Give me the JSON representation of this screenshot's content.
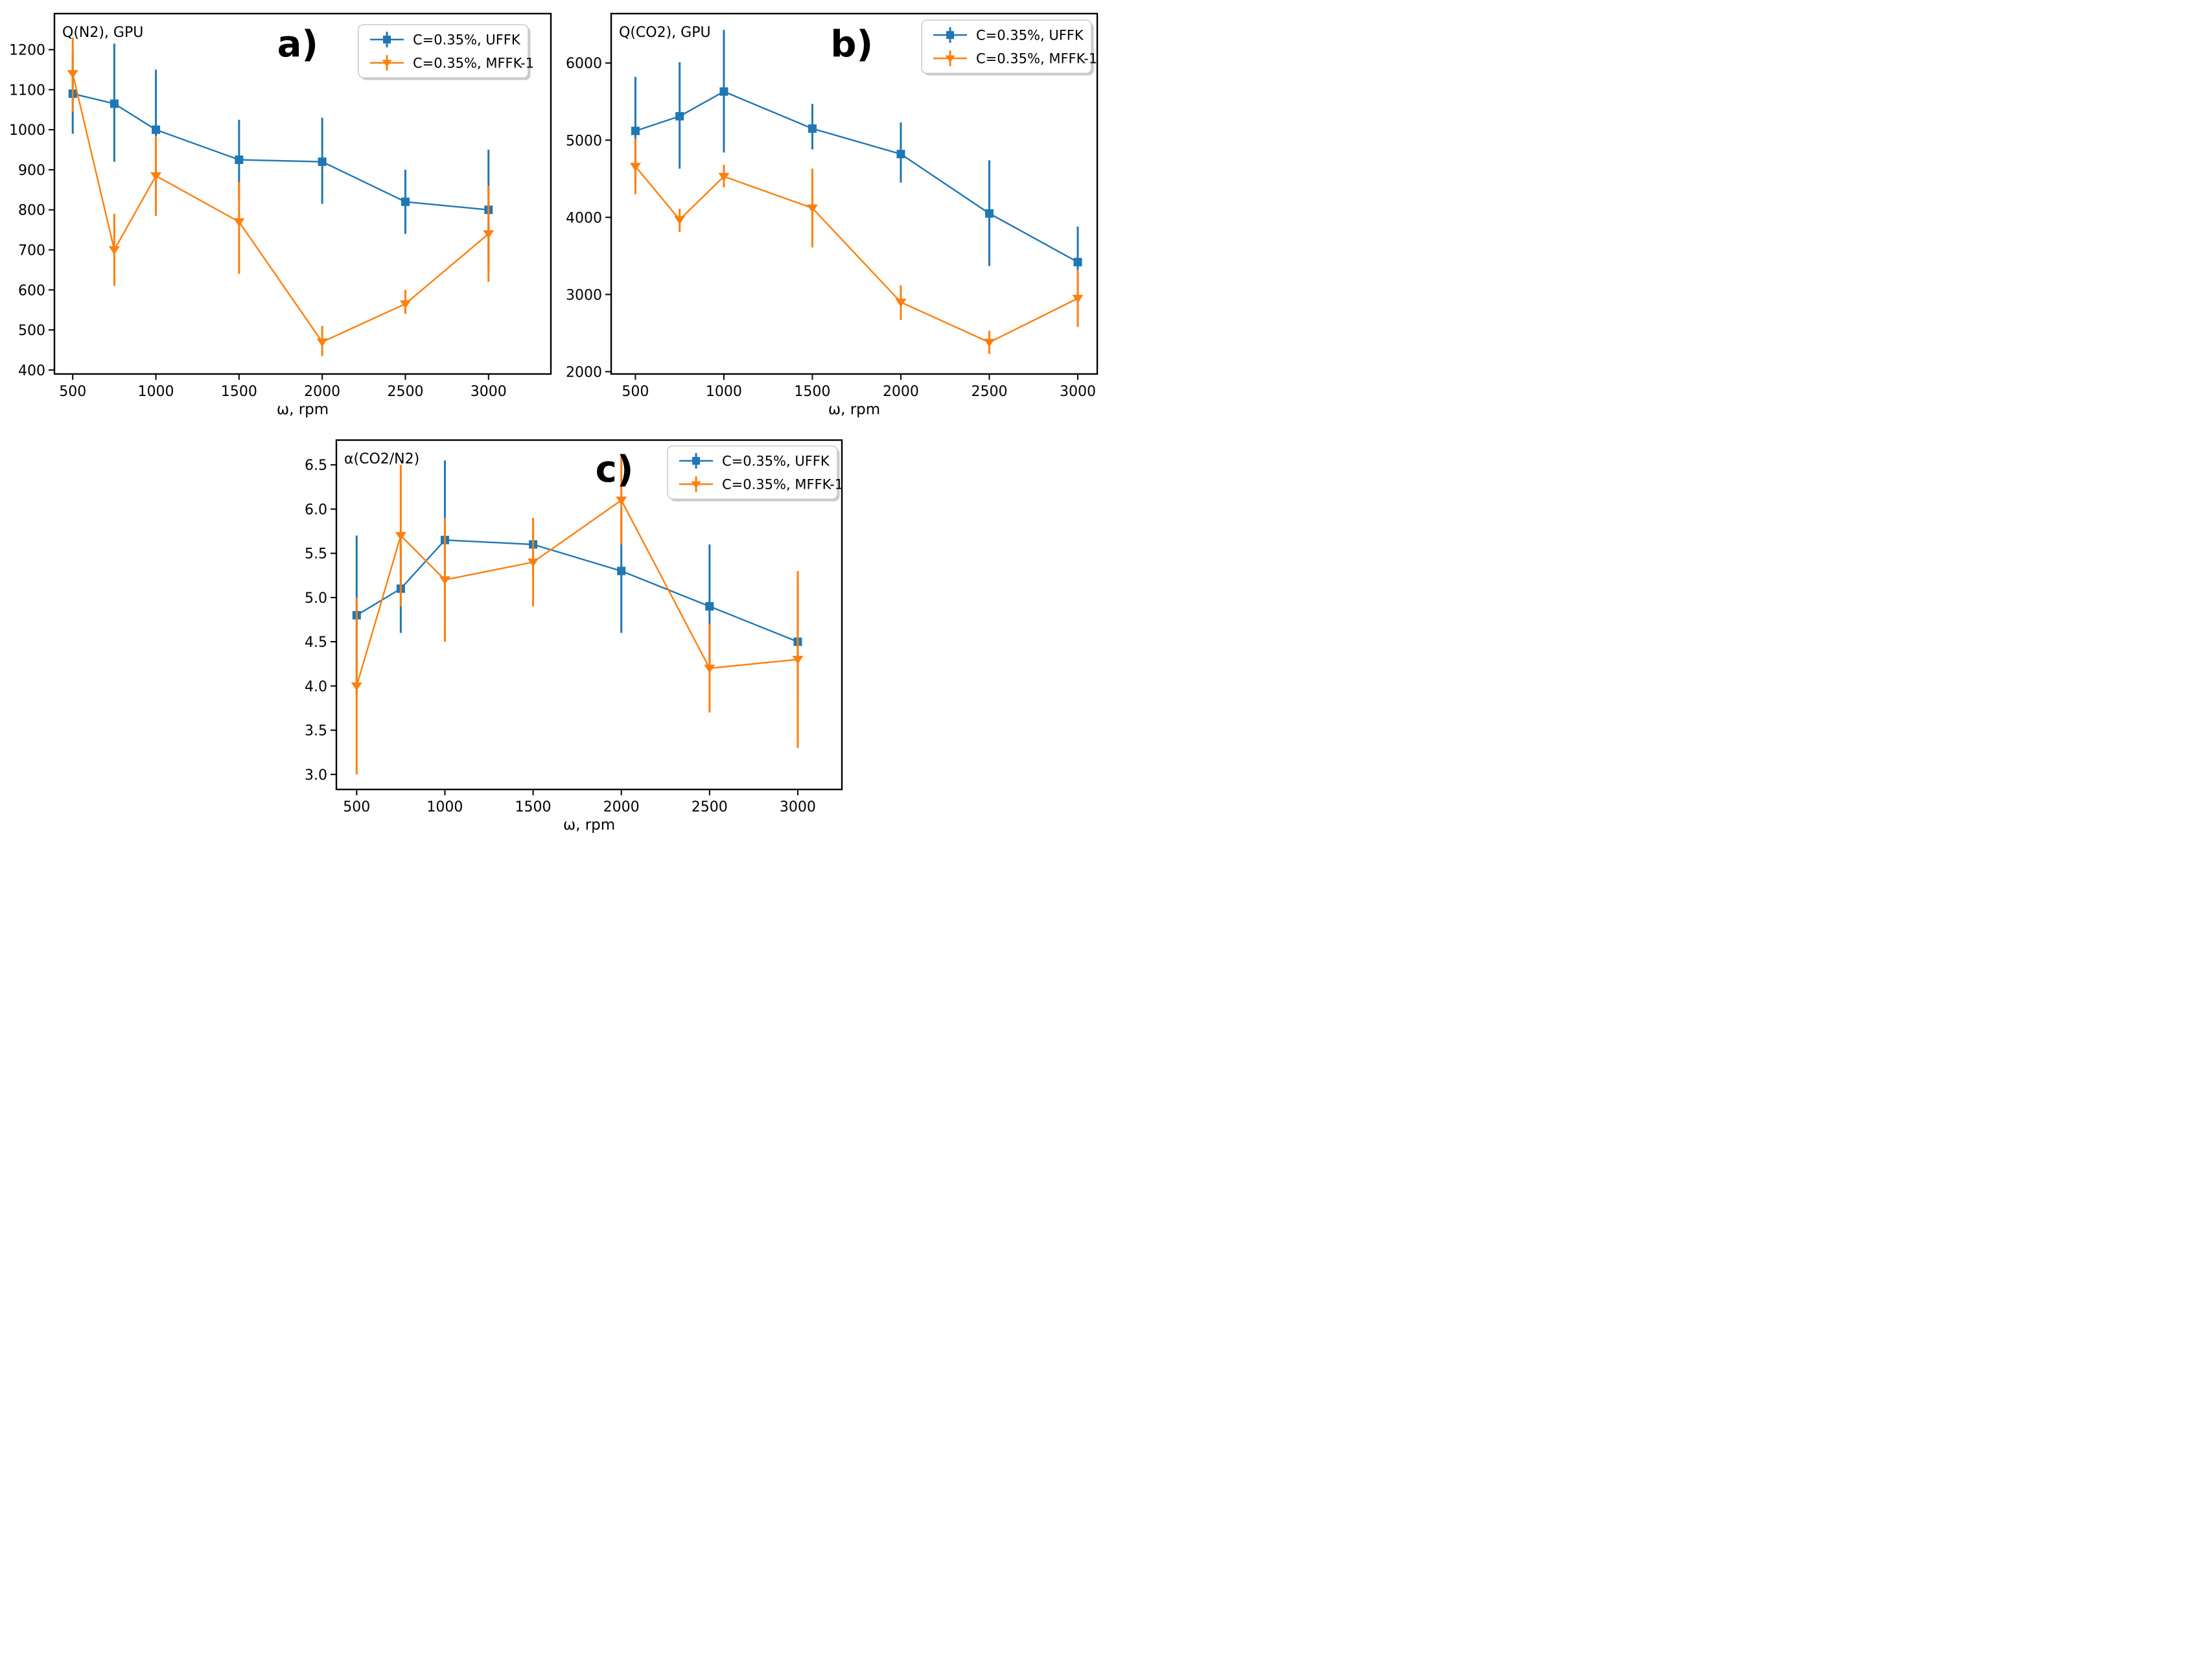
{
  "figure": {
    "background": "#ffffff",
    "axis_color": "#000000",
    "legend_border_color": "#cccccc",
    "legend_shadow_color": "#a0a0a0",
    "text_color": "#000000"
  },
  "chart_data": [
    {
      "id": "a",
      "panel_label": "a)",
      "type": "line",
      "title": "Q(N2), GPU",
      "xlabel": "ω, rpm",
      "x": [
        500,
        750,
        1000,
        1500,
        2000,
        2500,
        3000
      ],
      "xlim": [
        390,
        3375
      ],
      "xticks": [
        500,
        1000,
        1500,
        2000,
        2500,
        3000
      ],
      "xtick_labels": [
        "500",
        "1000",
        "1500",
        "2000",
        "2500",
        "3000"
      ],
      "ylim": [
        390,
        1290
      ],
      "yticks": [
        400,
        500,
        600,
        700,
        800,
        900,
        1000,
        1100,
        1200
      ],
      "ytick_labels": [
        "400",
        "500",
        "600",
        "700",
        "800",
        "900",
        "1000",
        "1100",
        "1200"
      ],
      "grid": false,
      "legend_position": "upper right",
      "series": [
        {
          "name": "C=0.35%, UFFK",
          "color": "#1f77b4",
          "marker": "square",
          "values": [
            1090,
            1065,
            1000,
            925,
            920,
            820,
            800
          ],
          "err_lo": [
            990,
            920,
            850,
            825,
            815,
            740,
            650
          ],
          "err_hi": [
            1190,
            1215,
            1150,
            1025,
            1030,
            900,
            950
          ]
        },
        {
          "name": "C=0.35%, MFFK-1",
          "color": "#ff7f0e",
          "marker": "triangle-down",
          "values": [
            1140,
            700,
            885,
            770,
            470,
            565,
            740
          ],
          "err_lo": [
            1045,
            610,
            785,
            640,
            435,
            540,
            620
          ],
          "err_hi": [
            1230,
            790,
            985,
            870,
            510,
            600,
            860
          ]
        }
      ]
    },
    {
      "id": "b",
      "panel_label": "b)",
      "type": "line",
      "title": "Q(CO2), GPU",
      "xlabel": "ω, rpm",
      "x": [
        500,
        750,
        1000,
        1500,
        2000,
        2500,
        3000
      ],
      "xlim": [
        363,
        3110
      ],
      "xticks": [
        500,
        1000,
        1500,
        2000,
        2500,
        3000
      ],
      "xtick_labels": [
        "500",
        "1000",
        "1500",
        "2000",
        "2500",
        "3000"
      ],
      "ylim": [
        1970,
        6640
      ],
      "yticks": [
        2000,
        3000,
        4000,
        5000,
        6000
      ],
      "ytick_labels": [
        "2000",
        "3000",
        "4000",
        "5000",
        "6000"
      ],
      "grid": false,
      "legend_position": "upper right",
      "series": [
        {
          "name": "C=0.35%, UFFK",
          "color": "#1f77b4",
          "marker": "square",
          "values": [
            5120,
            5310,
            5630,
            5150,
            4820,
            4050,
            3420
          ],
          "err_lo": [
            4430,
            4630,
            4840,
            4880,
            4450,
            3370,
            2960
          ],
          "err_hi": [
            5820,
            6010,
            6430,
            5470,
            5230,
            4740,
            3880
          ]
        },
        {
          "name": "C=0.35%, MFFK-1",
          "color": "#ff7f0e",
          "marker": "triangle-down",
          "values": [
            4660,
            3970,
            4530,
            4120,
            2900,
            2380,
            2950
          ],
          "err_lo": [
            4300,
            3810,
            4390,
            3610,
            2670,
            2230,
            2580
          ],
          "err_hi": [
            5020,
            4110,
            4680,
            4630,
            3120,
            2530,
            3320
          ]
        }
      ]
    },
    {
      "id": "c",
      "panel_label": "c)",
      "type": "line",
      "title": "α(CO2/N2)",
      "xlabel": "ω, rpm",
      "x": [
        500,
        750,
        1000,
        1500,
        2000,
        2500,
        3000
      ],
      "xlim": [
        385,
        3250
      ],
      "xticks": [
        500,
        1000,
        1500,
        2000,
        2500,
        3000
      ],
      "xtick_labels": [
        "500",
        "1000",
        "1500",
        "2000",
        "2500",
        "3000"
      ],
      "ylim": [
        2.83,
        6.78
      ],
      "yticks": [
        3.0,
        3.5,
        4.0,
        4.5,
        5.0,
        5.5,
        6.0,
        6.5
      ],
      "ytick_labels": [
        "3.0",
        "3.5",
        "4.0",
        "4.5",
        "5.0",
        "5.5",
        "6.0",
        "6.5"
      ],
      "grid": false,
      "legend_position": "upper right",
      "series": [
        {
          "name": "C=0.35%, UFFK",
          "color": "#1f77b4",
          "marker": "square",
          "values": [
            4.8,
            5.1,
            5.65,
            5.6,
            5.3,
            4.9,
            4.5
          ],
          "err_lo": [
            3.9,
            4.6,
            4.75,
            5.3,
            4.6,
            4.2,
            3.8
          ],
          "err_hi": [
            5.7,
            5.6,
            6.55,
            5.9,
            6.0,
            5.6,
            5.2
          ]
        },
        {
          "name": "C=0.35%, MFFK-1",
          "color": "#ff7f0e",
          "marker": "triangle-down",
          "values": [
            4.0,
            5.7,
            5.2,
            5.4,
            6.1,
            4.2,
            4.3
          ],
          "err_lo": [
            3.0,
            4.9,
            4.5,
            4.9,
            5.6,
            3.7,
            3.3
          ],
          "err_hi": [
            5.0,
            6.5,
            5.9,
            5.9,
            6.6,
            4.7,
            5.3
          ]
        }
      ]
    }
  ]
}
